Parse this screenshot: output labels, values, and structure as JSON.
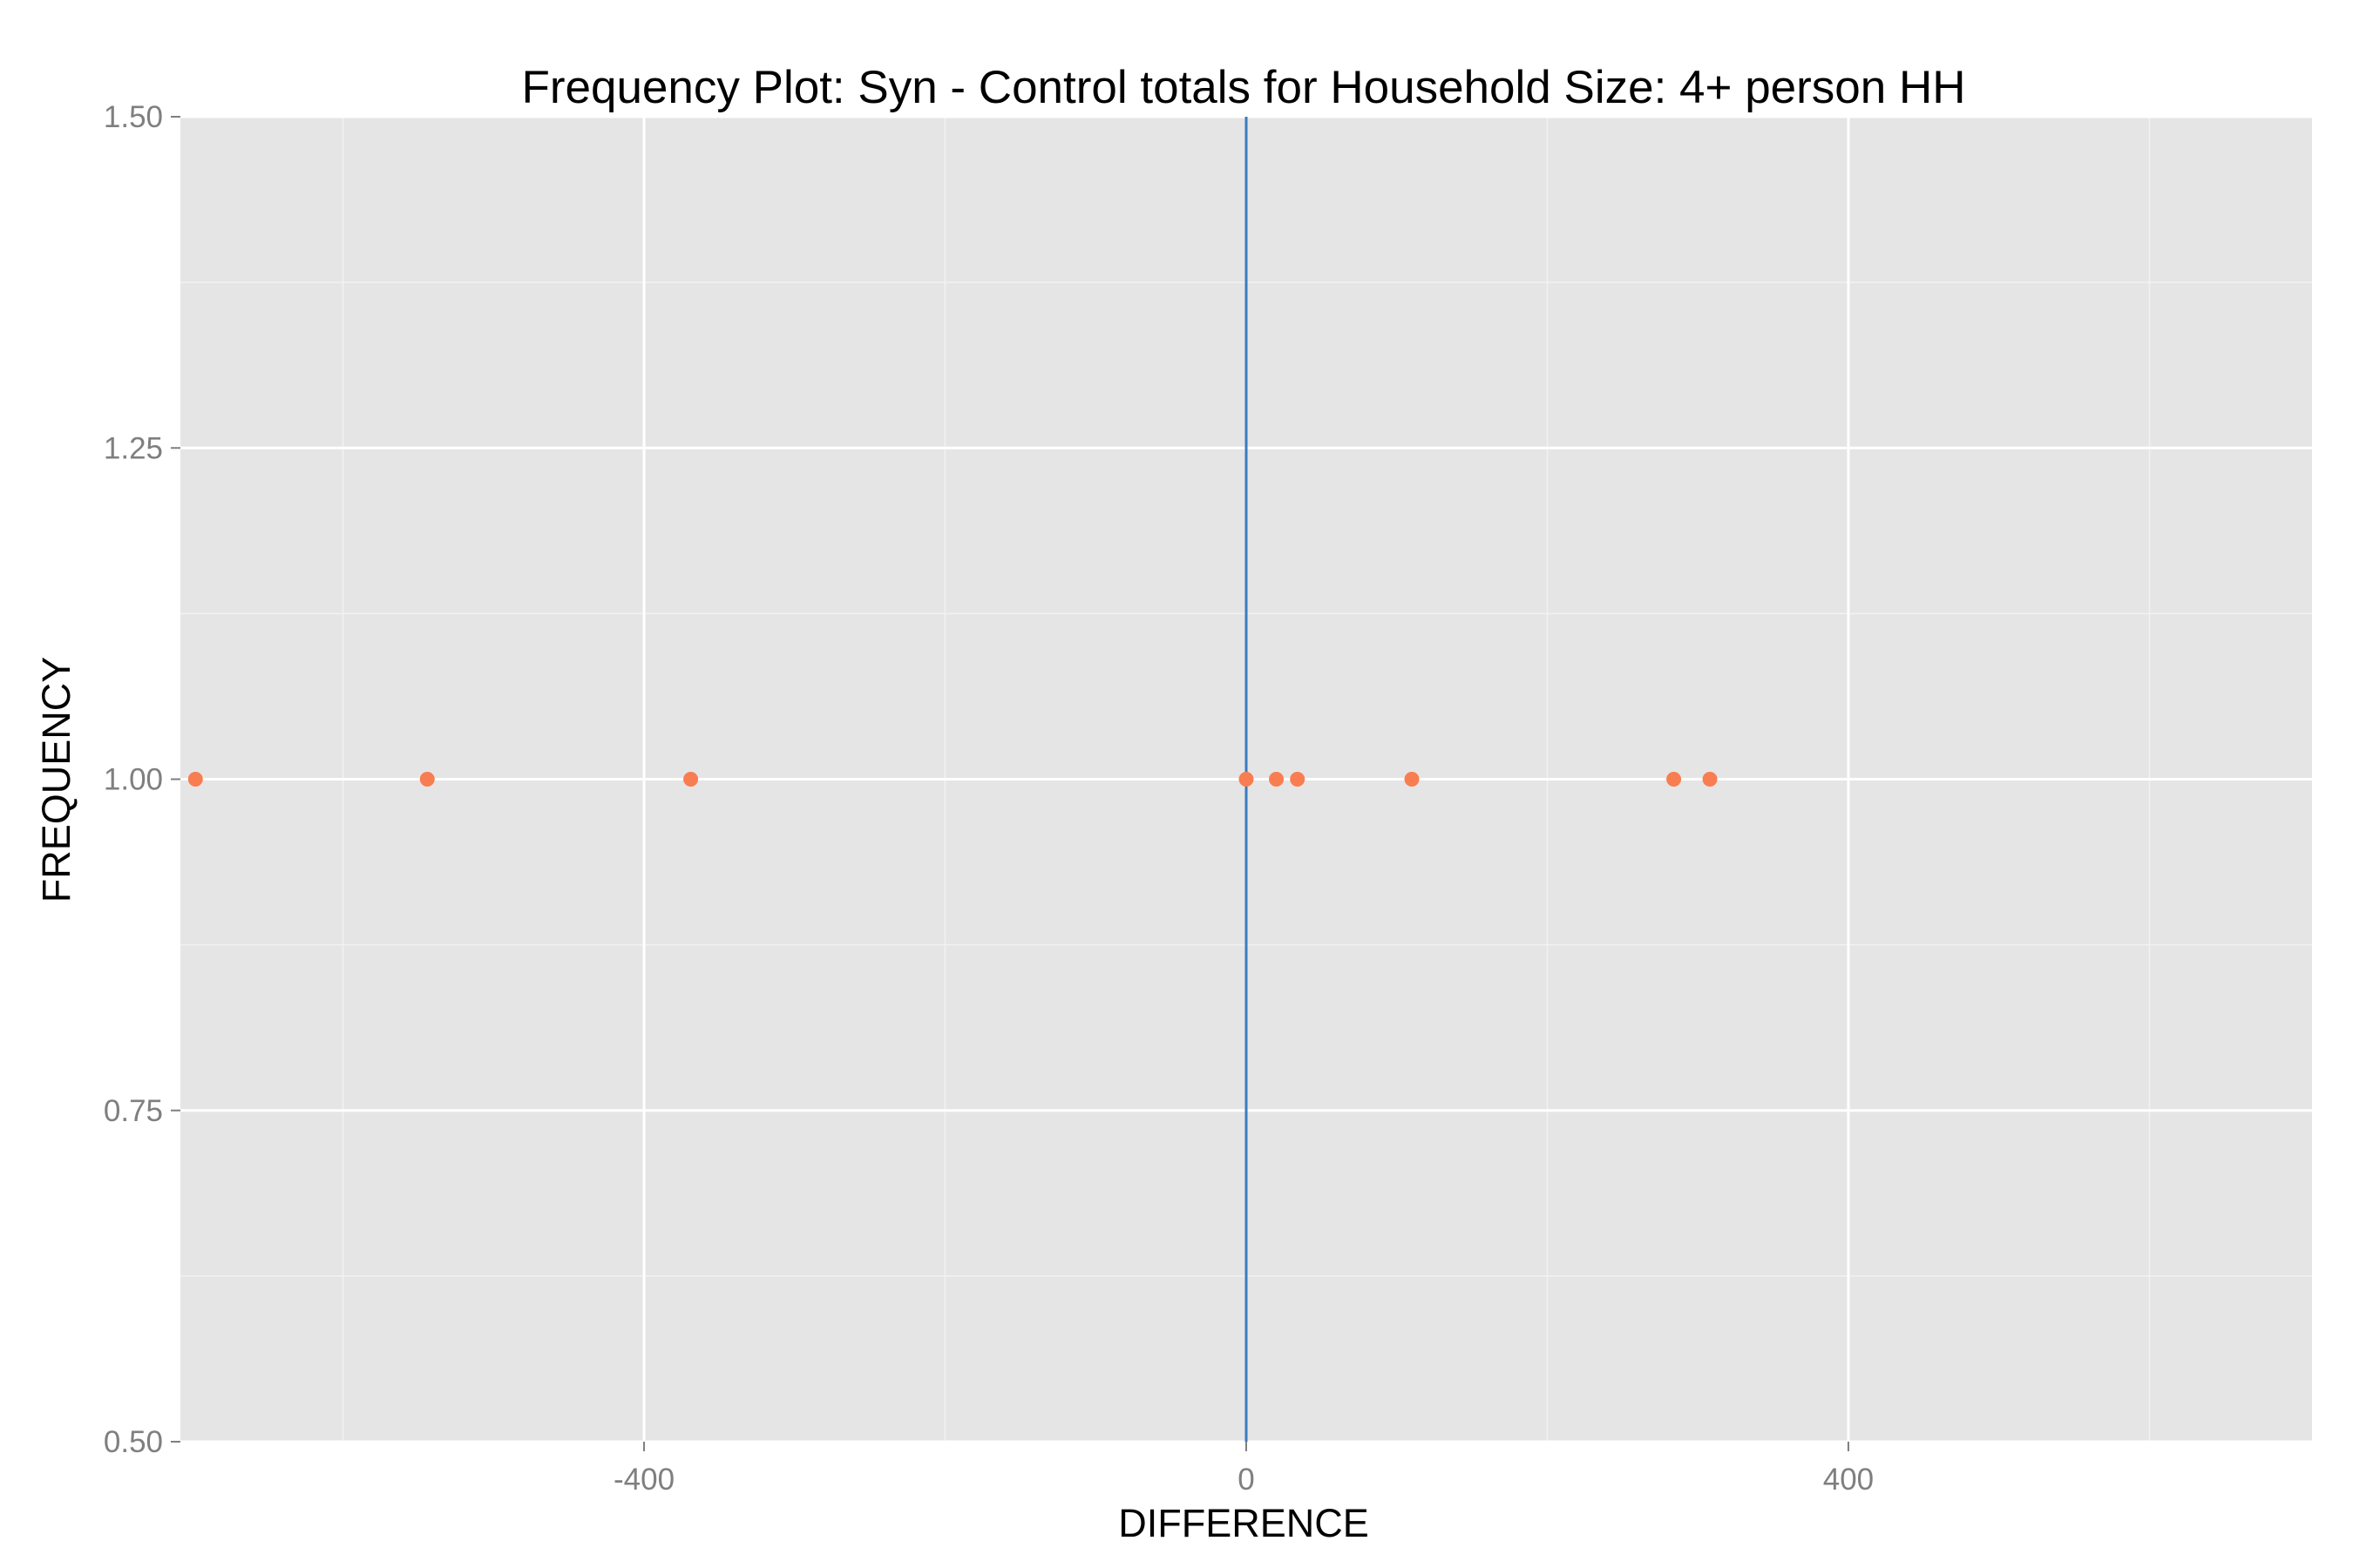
{
  "chart_data": {
    "type": "scatter",
    "title": "Frequency Plot: Syn - Control totals for Household Size: 4+ person HH",
    "xlabel": "DIFFERENCE",
    "ylabel": "FREQUENCY",
    "xlim": [
      -708,
      708
    ],
    "ylim": [
      0.5,
      1.5
    ],
    "x_ticks": [
      -400,
      0,
      400
    ],
    "x_tick_labels": [
      "-400",
      "0",
      "400"
    ],
    "y_ticks": [
      0.5,
      0.75,
      1.0,
      1.25,
      1.5
    ],
    "y_tick_labels": [
      "0.50",
      "0.75",
      "1.00",
      "1.25",
      "1.50"
    ],
    "grid": true,
    "reference_line": {
      "x": 0,
      "color": "#3b7bbf"
    },
    "point_color": "#f87d51",
    "panel_background": "#e5e5e5",
    "points": [
      {
        "x": -698,
        "y": 1
      },
      {
        "x": -544,
        "y": 1
      },
      {
        "x": -369,
        "y": 1
      },
      {
        "x": 0,
        "y": 1
      },
      {
        "x": 20,
        "y": 1
      },
      {
        "x": 34,
        "y": 1
      },
      {
        "x": 110,
        "y": 1
      },
      {
        "x": 284,
        "y": 1
      },
      {
        "x": 308,
        "y": 1
      }
    ]
  }
}
